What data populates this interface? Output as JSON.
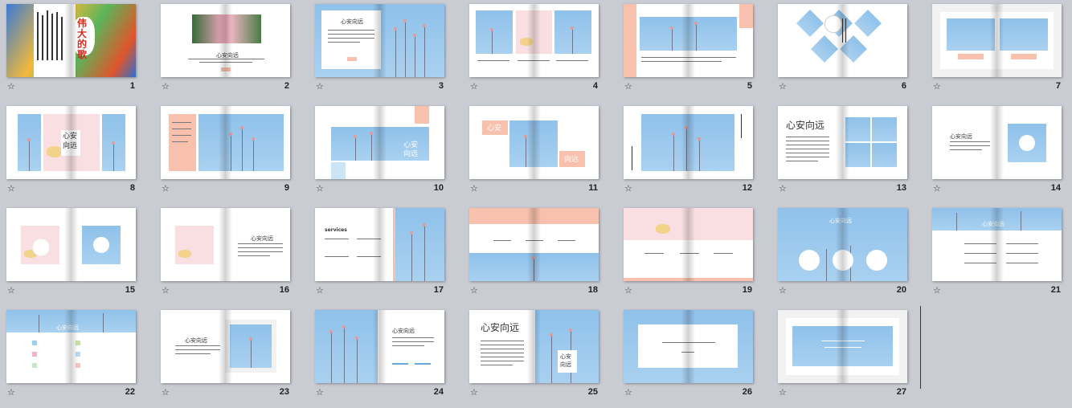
{
  "view": "slide-sorter",
  "slides": [
    {
      "num": "1",
      "title": "伟大的歌"
    },
    {
      "num": "2",
      "title": "心安向远"
    },
    {
      "num": "3",
      "title": "心安向远"
    },
    {
      "num": "4",
      "title": ""
    },
    {
      "num": "5",
      "title": ""
    },
    {
      "num": "6",
      "title": ""
    },
    {
      "num": "7",
      "title": ""
    },
    {
      "num": "8",
      "title": "心安向远"
    },
    {
      "num": "9",
      "title": ""
    },
    {
      "num": "10",
      "title": "心安向远"
    },
    {
      "num": "11",
      "title": "心安",
      "title2": "向远"
    },
    {
      "num": "12",
      "title": ""
    },
    {
      "num": "13",
      "title": "心安向远"
    },
    {
      "num": "14",
      "title": "心安向远"
    },
    {
      "num": "15",
      "title": ""
    },
    {
      "num": "16",
      "title": "心安向远"
    },
    {
      "num": "17",
      "title": "services"
    },
    {
      "num": "18",
      "title": ""
    },
    {
      "num": "19",
      "title": ""
    },
    {
      "num": "20",
      "title": "心安向远"
    },
    {
      "num": "21",
      "title": "心安向远"
    },
    {
      "num": "22",
      "title": "心安向远"
    },
    {
      "num": "23",
      "title": "心安向远"
    },
    {
      "num": "24",
      "title": "心安向远"
    },
    {
      "num": "25",
      "title": "心安向远",
      "title2": "心安向远"
    },
    {
      "num": "26",
      "title": ""
    },
    {
      "num": "27",
      "title": ""
    }
  ],
  "icons": {
    "slide_marker": "☆"
  },
  "colors": {
    "background": "#c9ccd3",
    "sky_blue": "#9ccbee",
    "pink": "#f9dfe2",
    "salmon": "#f7c1ad"
  }
}
